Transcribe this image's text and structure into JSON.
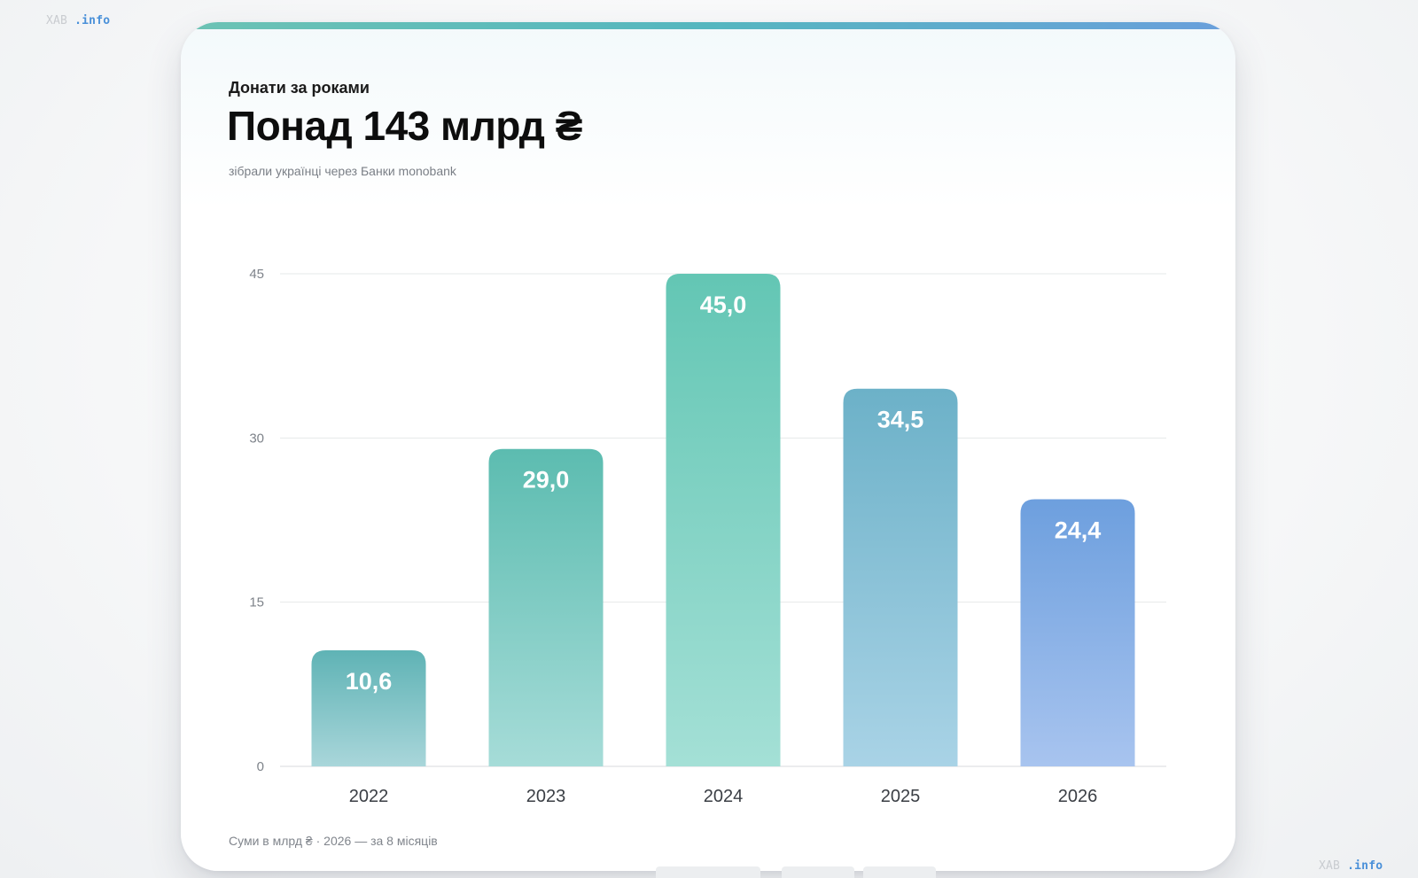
{
  "brand": {
    "name": "ХАВ",
    "suffix": ".info"
  },
  "card": {
    "kicker": "Донати за роками",
    "headline": "Понад 143 млрд ₴",
    "caption": "зібрали українці через Банки monobank",
    "footnote": "Суми в млрд ₴  ·  2026 — за 8 місяців"
  },
  "colors": {
    "accent_start": "#6cc3b4",
    "accent_end": "#6a9fdc",
    "bar_gradients": [
      [
        "#5fb3b5",
        "#a9d6da"
      ],
      [
        "#5cbcb0",
        "#a6dcd8"
      ],
      [
        "#63c6b4",
        "#a4e0d6"
      ],
      [
        "#6cb1c8",
        "#a9d3e6"
      ],
      [
        "#6d9fde",
        "#a8c4ef"
      ]
    ]
  },
  "chart_data": {
    "type": "bar",
    "categories": [
      "2022",
      "2023",
      "2024",
      "2025",
      "2026"
    ],
    "values": [
      10.6,
      29.0,
      45.0,
      34.5,
      24.4
    ],
    "value_labels": [
      "10,6",
      "29,0",
      "45,0",
      "34,5",
      "24,4"
    ],
    "title": "Донати за роками",
    "xlabel": "",
    "ylabel": "",
    "ylim": [
      0,
      45
    ],
    "yticks": [
      0,
      15,
      30,
      45
    ],
    "grid": true
  }
}
